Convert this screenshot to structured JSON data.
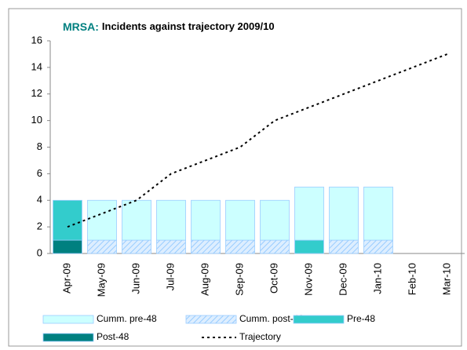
{
  "chart_data": {
    "type": "bar",
    "title_lead": "MRSA:",
    "title": "Incidents against trajectory 2009/10",
    "title_lead_color": "#008080",
    "categories": [
      "Apr-09",
      "May-09",
      "Jun-09",
      "Jul-09",
      "Aug-09",
      "Sep-09",
      "Oct-09",
      "Nov-09",
      "Dec-09",
      "Jan-10",
      "Feb-10",
      "Mar-10"
    ],
    "series": [
      {
        "name": "Cumm. pre-48",
        "type": "bar",
        "color": "#ccffff",
        "values": [
          0,
          3,
          3,
          3,
          3,
          3,
          3,
          4,
          4,
          4,
          null,
          null
        ]
      },
      {
        "name": "Cumm. post-48",
        "type": "bar",
        "color": "#99ccff",
        "hatch": true,
        "values": [
          0,
          1,
          1,
          1,
          1,
          1,
          1,
          0,
          1,
          1,
          null,
          null
        ]
      },
      {
        "name": "Pre-48",
        "type": "bar",
        "color": "#33cccc",
        "values": [
          3,
          0,
          0,
          0,
          0,
          0,
          0,
          1,
          0,
          0,
          null,
          null
        ]
      },
      {
        "name": "Post-48",
        "type": "bar",
        "color": "#008080",
        "values": [
          1,
          0,
          0,
          0,
          0,
          0,
          0,
          0,
          0,
          0,
          null,
          null
        ]
      },
      {
        "name": "Trajectory",
        "type": "line",
        "color": "#000000",
        "values": [
          2,
          3,
          4,
          6,
          7,
          8,
          10,
          11,
          12,
          13,
          14,
          15
        ]
      }
    ],
    "ylim": [
      0,
      16
    ],
    "yticks": [
      0,
      2,
      4,
      6,
      8,
      10,
      12,
      14,
      16
    ],
    "grid": false,
    "legend": "bottom"
  }
}
